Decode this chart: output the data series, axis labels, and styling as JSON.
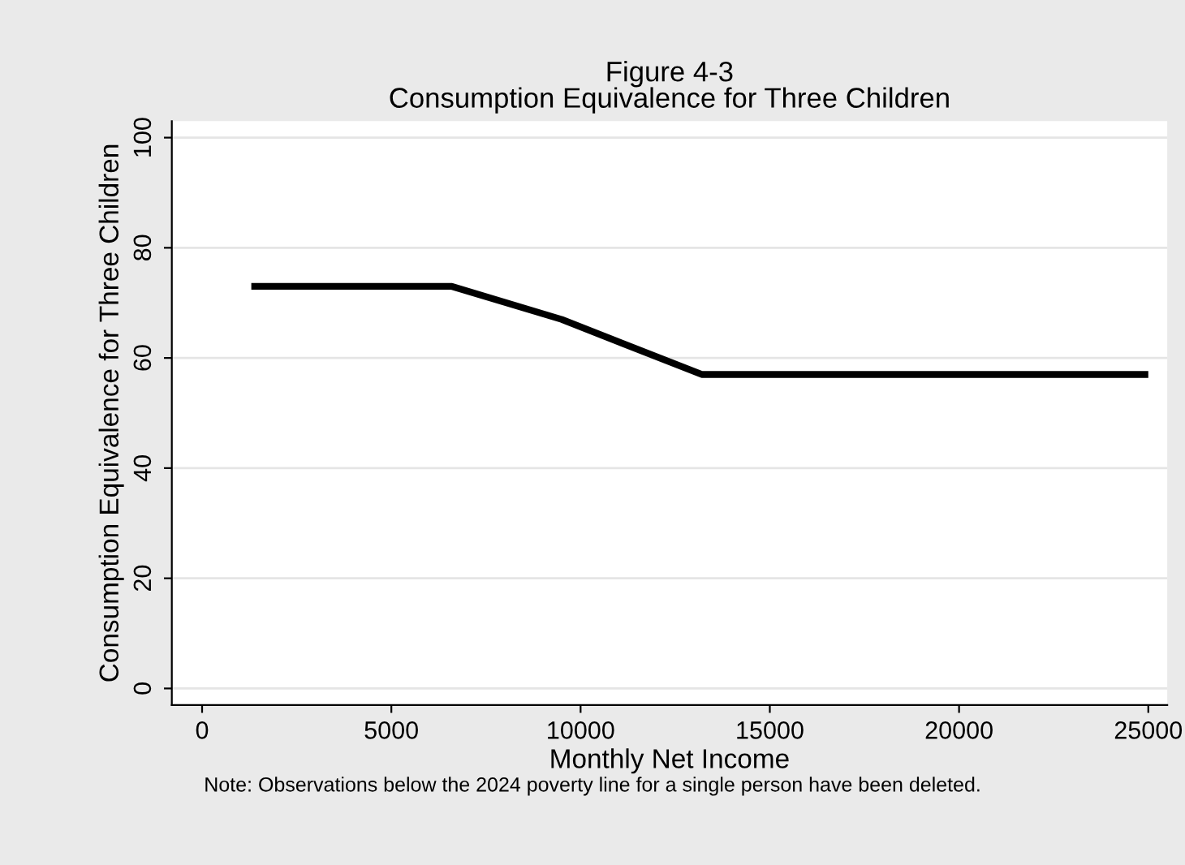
{
  "chart_data": {
    "type": "line",
    "title": "Figure 4-3\nConsumption Equivalence for Three Children",
    "xlabel": "Monthly Net Income",
    "ylabel": "Consumption Equivalence for Three Children",
    "x": [
      1300,
      6600,
      9500,
      13200,
      25000
    ],
    "series": [
      {
        "color": "#000000",
        "values": [
          73,
          73,
          67,
          57,
          57
        ]
      }
    ],
    "xlim": [
      -800,
      25500
    ],
    "ylim": [
      -3,
      103
    ],
    "xticks": [
      0,
      5000,
      10000,
      15000,
      20000,
      25000
    ],
    "yticks": [
      0,
      20,
      40,
      60,
      80,
      100
    ],
    "grid": "y",
    "annotations": [
      "Note: Observations below the 2024 poverty line for a single person have been deleted."
    ]
  }
}
